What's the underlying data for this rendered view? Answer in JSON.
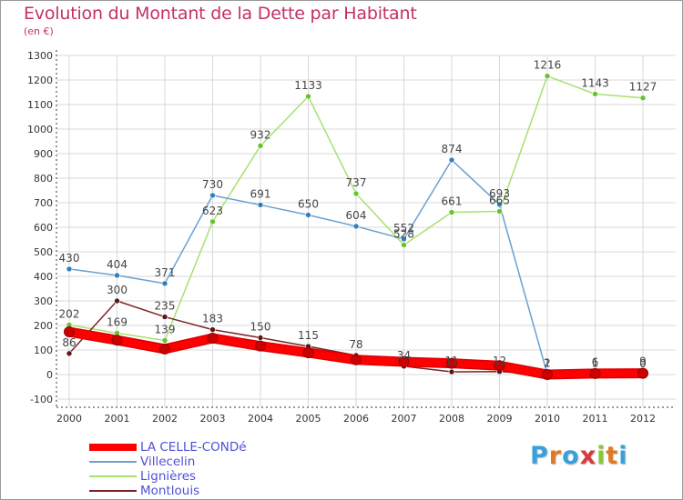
{
  "title": "Evolution du Montant de la Dette par Habitant",
  "subtitle": "(en €)",
  "logo": "Proxiti",
  "colors": {
    "title": "#c4306a",
    "legend_text": "#4f4fd8",
    "grid": "#d8d8d8",
    "axis": "#333333",
    "logo": [
      "#3aa0d8",
      "#e07a20",
      "#3aa0d8",
      "#d83a3a",
      "#8ac440",
      "#e07a20",
      "#3aa0d8"
    ]
  },
  "chart_data": {
    "type": "line",
    "categories": [
      "2000",
      "2001",
      "2002",
      "2003",
      "2004",
      "2005",
      "2006",
      "2007",
      "2008",
      "2009",
      "2010",
      "2011",
      "2012"
    ],
    "y_ticks": [
      -100,
      0,
      100,
      200,
      300,
      400,
      500,
      600,
      700,
      800,
      900,
      1000,
      1100,
      1200,
      1300
    ],
    "ylim": [
      -100,
      1300
    ],
    "grid": true,
    "legend_position": "bottom-left",
    "series": [
      {
        "name": "LA CELLE-CONDé",
        "color": "#ff0000",
        "marker": "#cc0000",
        "values": [
          174,
          140,
          104,
          148,
          116,
          89,
          60,
          52,
          46,
          36,
          0,
          4,
          5
        ],
        "labels": [],
        "thick": true
      },
      {
        "name": "Villecelin",
        "color": "#6aa0d0",
        "marker": "#2f7fc0",
        "values": [
          430,
          404,
          371,
          730,
          691,
          650,
          604,
          552,
          874,
          693,
          2,
          6,
          9
        ],
        "labels": [
          "430",
          "404",
          "371",
          "730",
          "691",
          "650",
          "604",
          "552",
          "874",
          "693",
          "2",
          "6",
          "9"
        ]
      },
      {
        "name": "Lignières",
        "color": "#a8e070",
        "marker": "#66c22e",
        "values": [
          202,
          169,
          139,
          623,
          932,
          1133,
          737,
          528,
          661,
          665,
          1216,
          1143,
          1127
        ],
        "labels": [
          "202",
          "169",
          "139",
          "623",
          "932",
          "1133",
          "737",
          "528",
          "661",
          "665",
          "1216",
          "1143",
          "1127"
        ]
      },
      {
        "name": "Montlouis",
        "color": "#7a2525",
        "marker": "#5a1818",
        "values": [
          86,
          300,
          235,
          183,
          150,
          115,
          78,
          34,
          11,
          12,
          1,
          1,
          0
        ],
        "labels": [
          "86",
          "300",
          "235",
          "183",
          "150",
          "115",
          "78",
          "34",
          "11",
          "12",
          "1",
          "1",
          "0"
        ]
      }
    ]
  }
}
